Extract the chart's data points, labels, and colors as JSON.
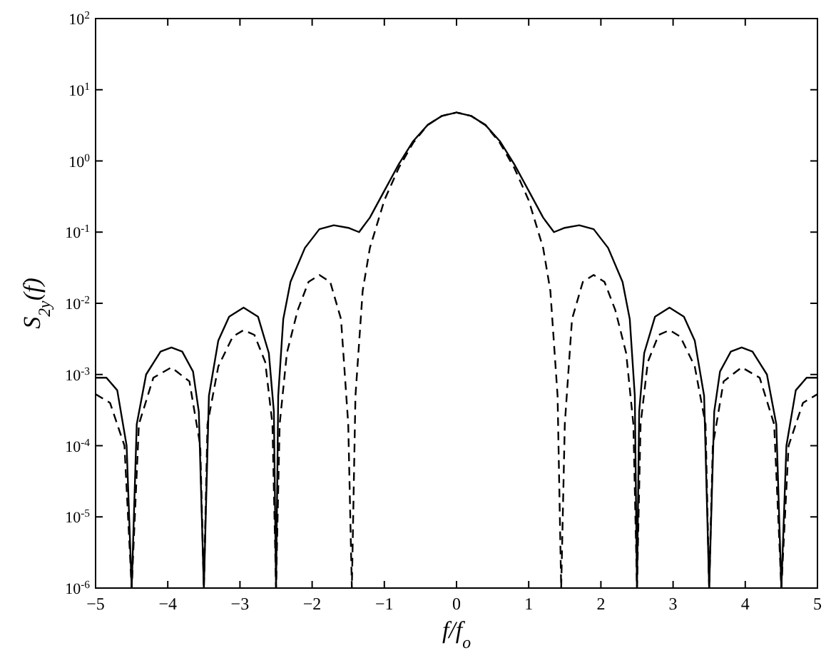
{
  "chart_data": {
    "type": "line",
    "xlabel": "f/f$_{o}$",
    "ylabel": "S$_{2y}$(f)",
    "log": "y",
    "xlim": [
      -5,
      5
    ],
    "ylim": [
      1e-06,
      100
    ],
    "xticks": [
      {
        "value": -5,
        "label": "−5"
      },
      {
        "value": -4,
        "label": "−4"
      },
      {
        "value": -3,
        "label": "−3"
      },
      {
        "value": -2,
        "label": "−2"
      },
      {
        "value": -1,
        "label": "−1"
      },
      0,
      1,
      2,
      3,
      4,
      5
    ],
    "yticks": [
      {
        "value": 1e-06,
        "label": "10$^{-6}$"
      },
      {
        "value": 1e-05,
        "label": "10$^{-5}$"
      },
      {
        "value": 0.0001,
        "label": "10$^{-4}$"
      },
      {
        "value": 0.001,
        "label": "10$^{-3}$"
      },
      {
        "value": 0.01,
        "label": "10$^{-2}$"
      },
      {
        "value": 0.1,
        "label": "10$^{-1}$"
      },
      {
        "value": 1,
        "label": "10$^{0}$"
      },
      {
        "value": 10,
        "label": "10$^{1}$"
      },
      {
        "value": 100,
        "label": "10$^{2}$"
      }
    ],
    "grid": false,
    "marker": "none",
    "series": [
      {
        "color": "#000000",
        "line_style": "solid",
        "x": [
          -5,
          -4.85,
          -4.7,
          -4.57,
          -4.5,
          -4.43,
          -4.3,
          -4.1,
          -3.95,
          -3.8,
          -3.65,
          -3.57,
          -3.5,
          -3.43,
          -3.3,
          -3.15,
          -2.95,
          -2.75,
          -2.6,
          -2.53,
          -2.5,
          -2.47,
          -2.4,
          -2.3,
          -2.1,
          -1.9,
          -1.7,
          -1.5,
          -1.35,
          -1.2,
          -1,
          -0.8,
          -0.6,
          -0.4,
          -0.2,
          0,
          0.2,
          0.4,
          0.6,
          0.8,
          1,
          1.2,
          1.35,
          1.5,
          1.7,
          1.9,
          2.1,
          2.3,
          2.4,
          2.47,
          2.5,
          2.53,
          2.6,
          2.75,
          2.95,
          3.15,
          3.3,
          3.43,
          3.5,
          3.57,
          3.65,
          3.8,
          3.95,
          4.1,
          4.3,
          4.43,
          4.5,
          4.57,
          4.7,
          4.85,
          5
        ],
        "values": [
          0.0009,
          0.0009,
          0.0006,
          0.0001,
          1e-06,
          0.0002,
          0.001,
          0.0021,
          0.0024,
          0.0021,
          0.0011,
          0.0003,
          1e-06,
          0.0005,
          0.003,
          0.0065,
          0.0087,
          0.0065,
          0.002,
          0.0003,
          1e-06,
          0.0005,
          0.006,
          0.02,
          0.06,
          0.11,
          0.125,
          0.115,
          0.1,
          0.16,
          0.38,
          0.9,
          1.9,
          3.2,
          4.3,
          4.8,
          4.3,
          3.2,
          1.9,
          0.9,
          0.38,
          0.16,
          0.1,
          0.115,
          0.125,
          0.11,
          0.06,
          0.02,
          0.006,
          0.0005,
          1e-06,
          0.0003,
          0.002,
          0.0065,
          0.0087,
          0.0065,
          0.003,
          0.0005,
          1e-06,
          0.0003,
          0.0011,
          0.0021,
          0.0024,
          0.0021,
          0.001,
          0.0002,
          1e-06,
          0.0001,
          0.0006,
          0.0009,
          0.0009
        ]
      },
      {
        "color": "#000000",
        "line_style": "dashed",
        "x": [
          -5,
          -4.8,
          -4.6,
          -4.5,
          -4.4,
          -4.2,
          -3.95,
          -3.7,
          -3.55,
          -3.5,
          -3.45,
          -3.3,
          -3.1,
          -2.95,
          -2.8,
          -2.65,
          -2.55,
          -2.5,
          -2.45,
          -2.35,
          -2.2,
          -2.05,
          -1.9,
          -1.75,
          -1.6,
          -1.5,
          -1.45,
          -1.4,
          -1.3,
          -1.2,
          -1,
          -0.8,
          -0.6,
          -0.4,
          -0.2,
          0,
          0.2,
          0.4,
          0.6,
          0.8,
          1,
          1.2,
          1.3,
          1.4,
          1.45,
          1.5,
          1.6,
          1.75,
          1.9,
          2.05,
          2.2,
          2.35,
          2.45,
          2.5,
          2.55,
          2.65,
          2.8,
          2.95,
          3.1,
          3.3,
          3.45,
          3.5,
          3.55,
          3.7,
          3.95,
          4.2,
          4.4,
          4.5,
          4.6,
          4.8,
          5
        ],
        "values": [
          0.00053,
          0.0004,
          0.0001,
          1e-06,
          0.0002,
          0.0009,
          0.00126,
          0.0008,
          0.0001,
          1e-06,
          0.0002,
          0.0013,
          0.0034,
          0.0042,
          0.0036,
          0.0015,
          0.0002,
          1e-06,
          0.0002,
          0.002,
          0.008,
          0.02,
          0.025,
          0.02,
          0.006,
          0.0002,
          1e-06,
          0.0005,
          0.015,
          0.06,
          0.28,
          0.8,
          1.8,
          3.2,
          4.3,
          4.8,
          4.3,
          3.2,
          1.8,
          0.8,
          0.28,
          0.06,
          0.015,
          0.0005,
          1e-06,
          0.0002,
          0.006,
          0.02,
          0.025,
          0.02,
          0.008,
          0.002,
          0.0002,
          1e-06,
          0.0002,
          0.0015,
          0.0036,
          0.0042,
          0.0034,
          0.0013,
          0.0002,
          1e-06,
          0.0001,
          0.0008,
          0.00126,
          0.0009,
          0.0002,
          1e-06,
          0.0001,
          0.0004,
          0.00053
        ]
      }
    ]
  }
}
